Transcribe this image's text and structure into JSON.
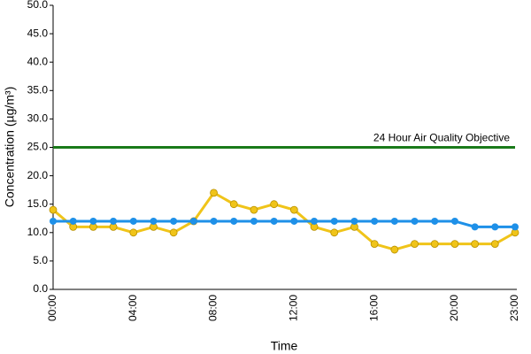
{
  "chart_data": {
    "type": "line",
    "y_label": "Concentration (µg/m³)",
    "x_label": "Time",
    "categories": [
      "00:00",
      null,
      null,
      null,
      "04:00",
      null,
      null,
      null,
      "08:00",
      null,
      null,
      null,
      "12:00",
      null,
      null,
      null,
      "16:00",
      null,
      null,
      null,
      "20:00",
      null,
      null,
      "23:00"
    ],
    "series": [
      {
        "color": "#f0c419",
        "values": [
          14,
          11,
          11,
          11,
          10,
          11,
          10,
          12,
          17,
          15,
          14,
          15,
          14,
          11,
          10,
          11,
          8,
          7,
          8,
          8,
          8,
          8,
          8,
          10
        ]
      },
      {
        "color": "#1e90e8",
        "values": [
          12,
          12,
          12,
          12,
          12,
          12,
          12,
          12,
          12,
          12,
          12,
          12,
          12,
          12,
          12,
          12,
          12,
          12,
          12,
          12,
          12,
          11,
          11,
          11
        ]
      }
    ],
    "reference_line": {
      "value": 25,
      "label": "24 Hour Air Quality Objective",
      "color": "#1a7a1a"
    },
    "ylim": [
      0,
      50
    ],
    "yticks": [
      {
        "value": 0,
        "label": "0.0"
      },
      {
        "value": 5,
        "label": "5.0"
      },
      {
        "value": 10,
        "label": "10.0"
      },
      {
        "value": 15,
        "label": "15.0"
      },
      {
        "value": 20,
        "label": "20.0"
      },
      {
        "value": 25,
        "label": "25.0"
      },
      {
        "value": 30,
        "label": "30.0"
      },
      {
        "value": 35,
        "label": "35.0"
      },
      {
        "value": 40,
        "label": "40.0"
      },
      {
        "value": 45,
        "label": "45.0"
      },
      {
        "value": 50,
        "label": "50.0"
      }
    ]
  }
}
